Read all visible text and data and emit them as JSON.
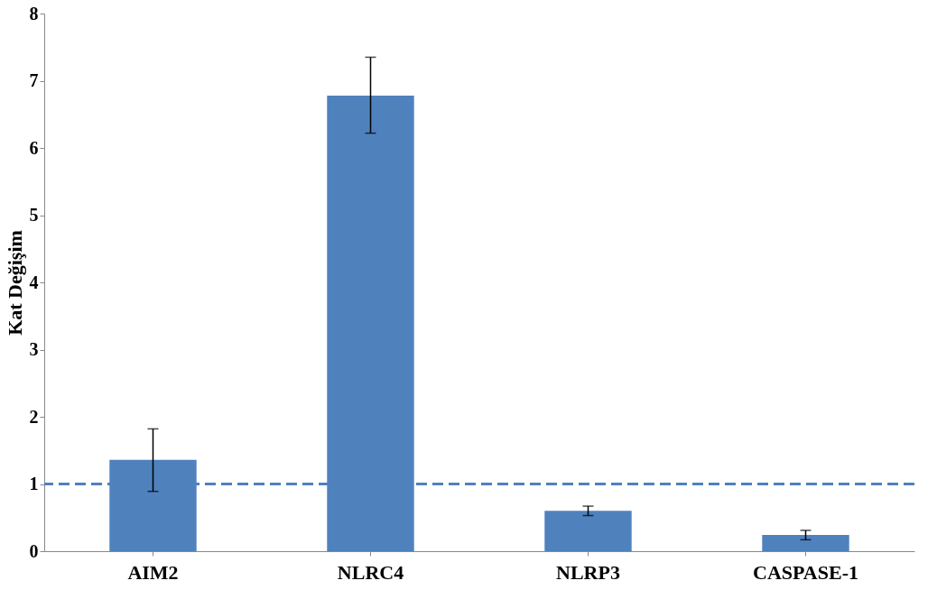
{
  "chart_data": {
    "type": "bar",
    "ylabel": "Kat Değişim",
    "categories": [
      "AIM2",
      "NLRC4",
      "NLRP3",
      "CASPASE-1"
    ],
    "values": [
      1.36,
      6.78,
      0.6,
      0.24
    ],
    "color": "#4f81bd",
    "errors": [
      [
        0.89,
        1.82
      ],
      [
        6.22,
        7.35
      ],
      [
        0.53,
        0.67
      ],
      [
        0.17,
        0.31
      ]
    ],
    "ylim": [
      0,
      8
    ],
    "yticks": [
      0,
      1,
      2,
      3,
      4,
      5,
      6,
      7,
      8
    ],
    "grid": false,
    "ref_lines": [
      {
        "axis": "y",
        "value": 1,
        "color": "#4f81bd",
        "line_style": "dashed"
      }
    ]
  }
}
